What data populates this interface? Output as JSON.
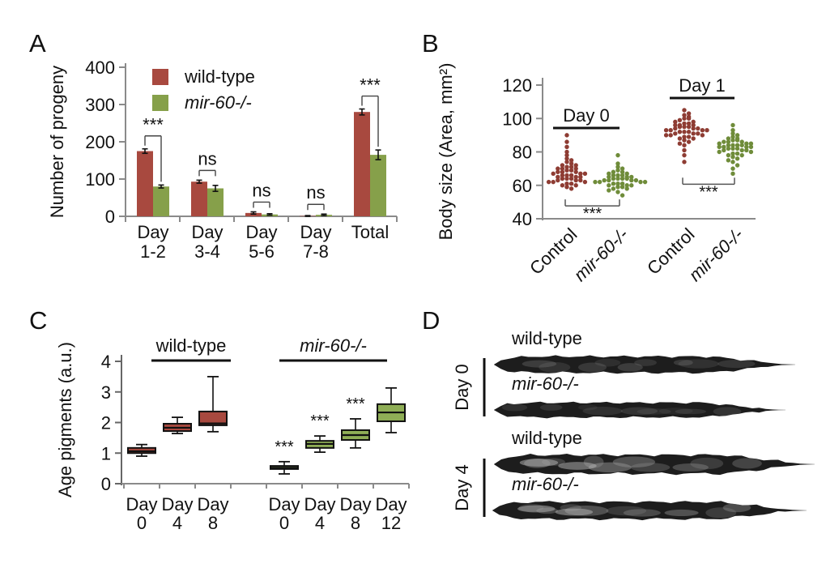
{
  "panels": {
    "a": {
      "label": "A"
    },
    "b": {
      "label": "B"
    },
    "c": {
      "label": "C"
    },
    "d": {
      "label": "D"
    }
  },
  "colors": {
    "wild_type_fill": "#a8493f",
    "mutant_fill": "#86a04a",
    "mutant_box_fill": "#8fae56",
    "wild_type_dot": "#8e3c33",
    "mutant_dot": "#6f8c3a",
    "axis": "#8a8a8a",
    "text": "#111111"
  },
  "chart_data": [
    {
      "id": "a",
      "type": "bar",
      "title": "",
      "ylabel": "Number of progeny",
      "ylim": [
        0,
        400
      ],
      "yticks": [
        0,
        100,
        200,
        300,
        400
      ],
      "categories": [
        [
          "Day",
          "1-2"
        ],
        [
          "Day",
          "3-4"
        ],
        [
          "Day",
          "5-6"
        ],
        [
          "Day",
          "7-8"
        ],
        [
          "Total",
          ""
        ]
      ],
      "series": [
        {
          "name": "wild-type",
          "italic": false,
          "color_key": "wild_type_fill",
          "values": [
            175,
            93,
            9,
            1,
            280
          ],
          "errors": [
            6,
            4,
            3,
            1,
            8
          ]
        },
        {
          "name": "mir-60-/-",
          "italic": true,
          "color_key": "mutant_fill",
          "values": [
            80,
            75,
            5,
            4,
            165
          ],
          "errors": [
            4,
            8,
            2,
            2,
            13
          ]
        }
      ],
      "significance": [
        "***",
        "ns",
        "ns",
        "ns",
        "***"
      ],
      "legend_position": "top-left-inside",
      "grid": false
    },
    {
      "id": "b",
      "type": "scatter",
      "title": "",
      "ylabel": "Body size (Area, mm²)",
      "ylim": [
        40,
        120
      ],
      "yticks": [
        40,
        60,
        80,
        100,
        120
      ],
      "group_headers": [
        "Day 0",
        "Day 1"
      ],
      "groups": [
        {
          "label": "Control",
          "italic": false,
          "header": "Day 0",
          "color_key": "wild_type_dot",
          "values": [
            58,
            59,
            60,
            60,
            61,
            61,
            62,
            62,
            62,
            63,
            63,
            63,
            64,
            64,
            64,
            65,
            65,
            65,
            66,
            66,
            66,
            67,
            67,
            67,
            68,
            68,
            68,
            69,
            69,
            70,
            70,
            70,
            71,
            71,
            72,
            72,
            73,
            74,
            75,
            76,
            78,
            80,
            83,
            86,
            90
          ]
        },
        {
          "label": "mir-60-/-",
          "italic": true,
          "header": "Day 0",
          "color_key": "mutant_dot",
          "values": [
            54,
            56,
            57,
            58,
            58,
            59,
            59,
            60,
            60,
            60,
            61,
            61,
            61,
            62,
            62,
            62,
            62,
            63,
            63,
            63,
            63,
            64,
            64,
            64,
            64,
            65,
            65,
            65,
            66,
            66,
            66,
            67,
            67,
            68,
            68,
            69,
            70,
            71,
            73,
            78
          ]
        },
        {
          "label": "Control",
          "italic": false,
          "header": "Day 1",
          "color_key": "wild_type_dot",
          "values": [
            74,
            78,
            81,
            84,
            85,
            86,
            87,
            88,
            88,
            89,
            89,
            90,
            90,
            90,
            91,
            91,
            91,
            92,
            92,
            92,
            93,
            93,
            93,
            93,
            94,
            94,
            94,
            95,
            95,
            95,
            96,
            96,
            96,
            97,
            97,
            98,
            98,
            99,
            100,
            100,
            101,
            102,
            103,
            105
          ]
        },
        {
          "label": "mir-60-/-",
          "italic": true,
          "header": "Day 1",
          "color_key": "mutant_dot",
          "values": [
            67,
            70,
            72,
            74,
            75,
            76,
            77,
            78,
            78,
            79,
            79,
            80,
            80,
            81,
            81,
            81,
            82,
            82,
            82,
            83,
            83,
            83,
            83,
            84,
            84,
            84,
            84,
            85,
            85,
            85,
            86,
            86,
            86,
            87,
            87,
            88,
            88,
            89,
            90,
            91,
            93,
            96
          ]
        }
      ],
      "significance": [
        {
          "pair": [
            0,
            1
          ],
          "label": "***"
        },
        {
          "pair": [
            2,
            3
          ],
          "label": "***"
        }
      ],
      "grid": false
    },
    {
      "id": "c",
      "type": "box",
      "title": "",
      "ylabel": "Age pigments (a.u.)",
      "ylim": [
        0,
        4
      ],
      "yticks": [
        0,
        1,
        2,
        3,
        4
      ],
      "groups": [
        {
          "header": "wild-type",
          "italic": false,
          "color_key": "wild_type_fill",
          "boxes": [
            {
              "label": [
                "Day",
                "0"
              ],
              "low": 0.9,
              "q1": 1.0,
              "median": 1.06,
              "q3": 1.17,
              "high": 1.28,
              "sig": ""
            },
            {
              "label": [
                "Day",
                "4"
              ],
              "low": 1.64,
              "q1": 1.72,
              "median": 1.83,
              "q3": 1.96,
              "high": 2.17,
              "sig": ""
            },
            {
              "label": [
                "Day",
                "8"
              ],
              "low": 1.7,
              "q1": 1.91,
              "median": 1.97,
              "q3": 2.36,
              "high": 3.5,
              "sig": ""
            }
          ]
        },
        {
          "header": "mir-60-/-",
          "italic": true,
          "color_key": "mutant_box_fill",
          "boxes": [
            {
              "label": [
                "Day",
                "0"
              ],
              "low": 0.32,
              "q1": 0.48,
              "median": 0.52,
              "q3": 0.58,
              "high": 0.72,
              "sig": "***"
            },
            {
              "label": [
                "Day",
                "4"
              ],
              "low": 1.03,
              "q1": 1.17,
              "median": 1.3,
              "q3": 1.4,
              "high": 1.56,
              "sig": "***"
            },
            {
              "label": [
                "Day",
                "8"
              ],
              "low": 1.17,
              "q1": 1.43,
              "median": 1.59,
              "q3": 1.75,
              "high": 2.12,
              "sig": "***"
            },
            {
              "label": [
                "Day",
                "12"
              ],
              "low": 1.67,
              "q1": 2.04,
              "median": 2.33,
              "q3": 2.6,
              "high": 3.13,
              "sig": ""
            }
          ]
        }
      ],
      "grid": false
    }
  ],
  "panel_d": {
    "row_labels": [
      "Day 0",
      "Day 4"
    ],
    "worms": [
      {
        "row": "Day 0",
        "label": "wild-type",
        "italic": false
      },
      {
        "row": "Day 0",
        "label": "mir-60-/-",
        "italic": true
      },
      {
        "row": "Day 4",
        "label": "wild-type",
        "italic": false
      },
      {
        "row": "Day 4",
        "label": "mir-60-/-",
        "italic": true
      }
    ]
  }
}
